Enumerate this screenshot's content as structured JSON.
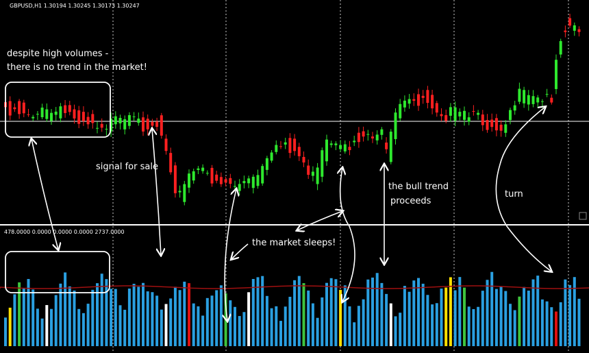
{
  "header": {
    "symbol_info": "GBPUSD,H1  1.30194 1.30245 1.30173 1.30247"
  },
  "indicator": {
    "info": "478.0000 0.0000 0.0000 0.0000 2737.0000"
  },
  "annotations": [
    "despite high volumes -",
    "there is no trend in the market!",
    "signal for sale",
    "the market sleeps!",
    "the bull trend",
    "proceeds",
    "turn"
  ]
}
